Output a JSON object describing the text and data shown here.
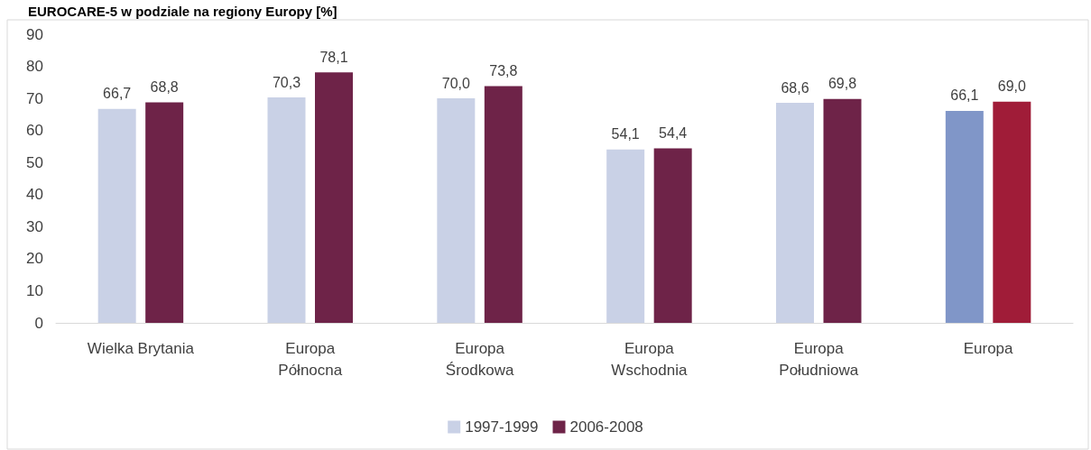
{
  "chart_data": {
    "type": "bar",
    "title": "EUROCARE-5 w podziale na regiony Europy [%]",
    "categories": [
      "Wielka Brytania",
      "Europa\nPółnocna",
      "Europa\nŚrodkowa",
      "Europa\nWschodnia",
      "Europa\nPołudniowa",
      "Europa"
    ],
    "series": [
      {
        "name": "1997-1999",
        "color": "#c9d1e6",
        "colors": [
          "#c9d1e6",
          "#c9d1e6",
          "#c9d1e6",
          "#c9d1e6",
          "#c9d1e6",
          "#8096c8"
        ],
        "values": [
          66.7,
          70.3,
          70.0,
          54.1,
          68.6,
          66.1
        ],
        "value_labels": [
          "66,7",
          "70,3",
          "70,0",
          "54,1",
          "68,6",
          "66,1"
        ]
      },
      {
        "name": "2006-2008",
        "color": "#6e2348",
        "colors": [
          "#6e2348",
          "#6e2348",
          "#6e2348",
          "#6e2348",
          "#6e2348",
          "#a01c38"
        ],
        "values": [
          68.8,
          78.1,
          73.8,
          54.4,
          69.8,
          69.0
        ],
        "value_labels": [
          "68,8",
          "78,1",
          "73,8",
          "54,4",
          "69,8",
          "69,0"
        ]
      }
    ],
    "ylim": [
      0,
      90
    ],
    "yticks": [
      0,
      10,
      20,
      30,
      40,
      50,
      60,
      70,
      80,
      90
    ],
    "grid": false,
    "legend": "bottom"
  }
}
